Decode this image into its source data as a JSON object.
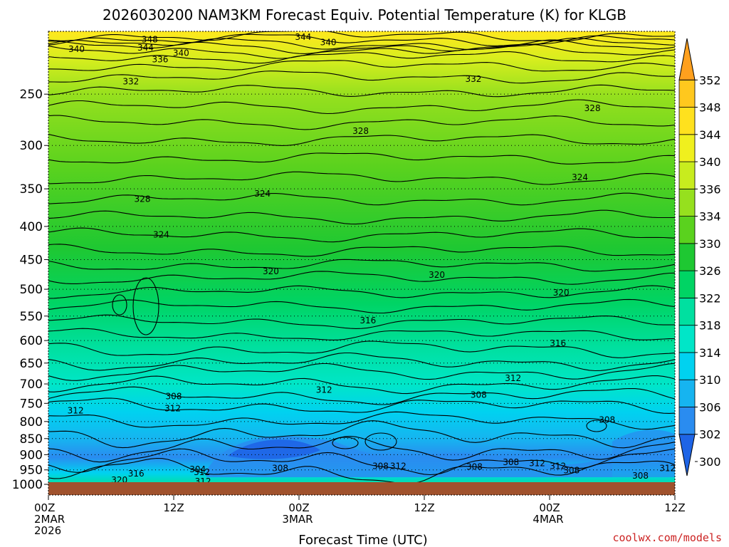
{
  "title": "2026030200 NAM3KM Forecast Equiv. Potential Temperature (K) for KLGB",
  "credit": "coolwx.com/models",
  "credit_color": "#cc2222",
  "ground_color": "#a0522d",
  "chart_data": {
    "type": "heatmap",
    "title": "2026030200 NAM3KM Forecast Equiv. Potential Temperature (K) for KLGB",
    "xlabel": "Forecast Time (UTC)",
    "ylabel": "",
    "y_scale": "log",
    "y_range_hPa": [
      1000,
      200
    ],
    "x_range_hours": [
      0,
      60
    ],
    "x_ticks": [
      {
        "hour": 0,
        "lines": [
          "00Z",
          "2MAR",
          "2026"
        ]
      },
      {
        "hour": 12,
        "lines": [
          "12Z"
        ]
      },
      {
        "hour": 24,
        "lines": [
          "00Z",
          "3MAR"
        ]
      },
      {
        "hour": 36,
        "lines": [
          "12Z"
        ]
      },
      {
        "hour": 48,
        "lines": [
          "00Z",
          "4MAR"
        ]
      },
      {
        "hour": 60,
        "lines": [
          "12Z"
        ]
      }
    ],
    "y_ticks": [
      250,
      300,
      350,
      400,
      450,
      500,
      550,
      600,
      650,
      700,
      750,
      800,
      850,
      900,
      950,
      1000
    ],
    "colorbar": {
      "levels": [
        300,
        302,
        306,
        310,
        314,
        318,
        322,
        326,
        330,
        334,
        336,
        340,
        344,
        348,
        352
      ],
      "colors": [
        "#1e64e6",
        "#2a8cf0",
        "#16b4f0",
        "#00d2f0",
        "#00e6c8",
        "#00e0a0",
        "#00d464",
        "#1ec832",
        "#5ad21e",
        "#96e01e",
        "#c8ec1e",
        "#f0f01e",
        "#ffe11e",
        "#ffc81e",
        "#ffa01e"
      ]
    },
    "contour_labels": [
      {
        "text": "348",
        "hour": 9.7,
        "p": 206
      },
      {
        "text": "344",
        "hour": 9.3,
        "p": 212
      },
      {
        "text": "340",
        "hour": 2.7,
        "p": 213
      },
      {
        "text": "340",
        "hour": 12.7,
        "p": 216
      },
      {
        "text": "336",
        "hour": 10.7,
        "p": 221
      },
      {
        "text": "332",
        "hour": 7.9,
        "p": 239
      },
      {
        "text": "344",
        "hour": 24.4,
        "p": 204
      },
      {
        "text": "340",
        "hour": 26.8,
        "p": 208
      },
      {
        "text": "332",
        "hour": 40.7,
        "p": 237
      },
      {
        "text": "328",
        "hour": 29.9,
        "p": 285
      },
      {
        "text": "328",
        "hour": 52.1,
        "p": 263
      },
      {
        "text": "324",
        "hour": 50.9,
        "p": 336
      },
      {
        "text": "328",
        "hour": 9.0,
        "p": 363
      },
      {
        "text": "324",
        "hour": 20.5,
        "p": 356
      },
      {
        "text": "324",
        "hour": 10.8,
        "p": 412
      },
      {
        "text": "320",
        "hour": 21.3,
        "p": 469
      },
      {
        "text": "320",
        "hour": 37.2,
        "p": 475
      },
      {
        "text": "320",
        "hour": 49.1,
        "p": 506
      },
      {
        "text": "316",
        "hour": 30.6,
        "p": 559
      },
      {
        "text": "316",
        "hour": 48.8,
        "p": 606
      },
      {
        "text": "312",
        "hour": 44.5,
        "p": 686
      },
      {
        "text": "312",
        "hour": 26.4,
        "p": 715
      },
      {
        "text": "308",
        "hour": 41.2,
        "p": 728
      },
      {
        "text": "308",
        "hour": 12.0,
        "p": 732
      },
      {
        "text": "312",
        "hour": 2.6,
        "p": 770
      },
      {
        "text": "312",
        "hour": 11.9,
        "p": 764
      },
      {
        "text": "308",
        "hour": 53.5,
        "p": 795
      },
      {
        "text": "308",
        "hour": 40.8,
        "p": 940
      },
      {
        "text": "308",
        "hour": 44.3,
        "p": 925
      },
      {
        "text": "312",
        "hour": 46.8,
        "p": 928
      },
      {
        "text": "312",
        "hour": 48.8,
        "p": 938
      },
      {
        "text": "308",
        "hour": 22.2,
        "p": 945
      },
      {
        "text": "308",
        "hour": 31.8,
        "p": 938
      },
      {
        "text": "312",
        "hour": 33.5,
        "p": 938
      },
      {
        "text": "304",
        "hour": 14.3,
        "p": 948
      },
      {
        "text": "312",
        "hour": 14.7,
        "p": 958
      },
      {
        "text": "316",
        "hour": 8.4,
        "p": 963
      },
      {
        "text": "320",
        "hour": 6.8,
        "p": 985
      },
      {
        "text": "312",
        "hour": 14.8,
        "p": 990
      },
      {
        "text": "308",
        "hour": 56.7,
        "p": 970
      },
      {
        "text": "308",
        "hour": 50.1,
        "p": 952
      },
      {
        "text": "312",
        "hour": 59.3,
        "p": 945
      }
    ]
  }
}
